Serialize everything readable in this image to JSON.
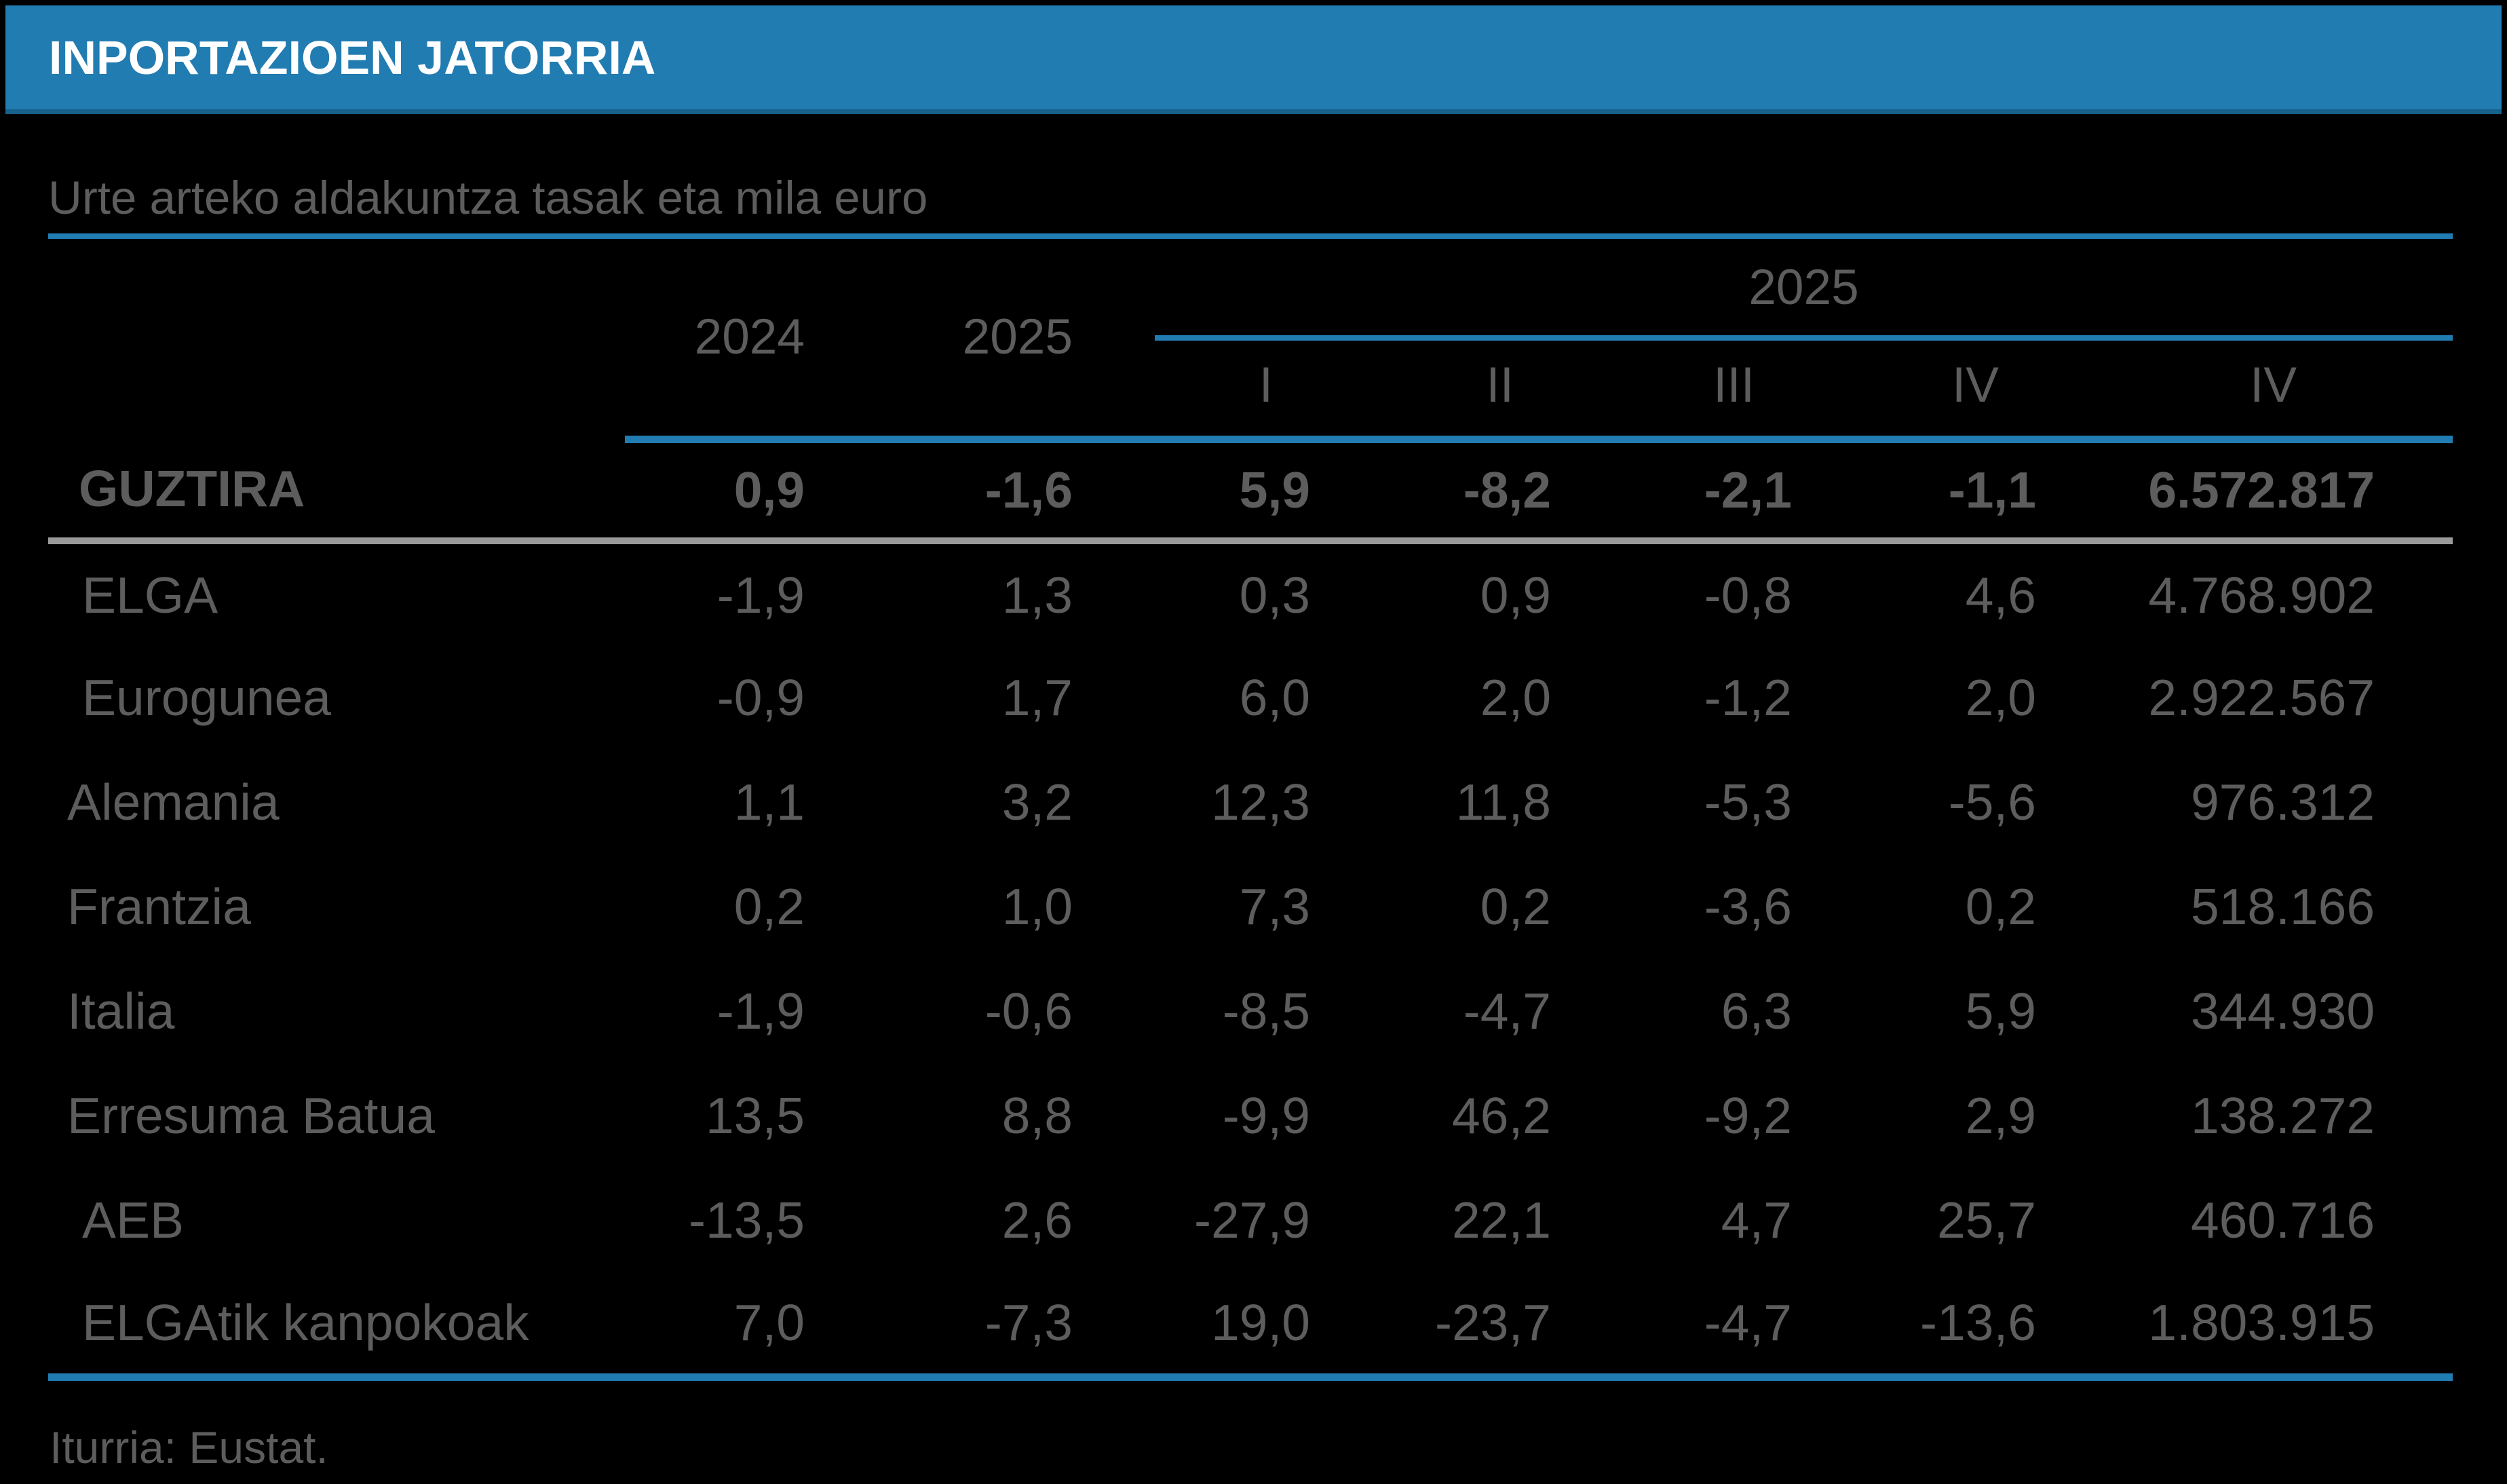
{
  "title_bar": {
    "title": "INPORTAZIOEN JATORRIA"
  },
  "subtitle": "Urte arteko aldakuntza tasak eta mila euro",
  "table": {
    "year_columns": [
      "2024",
      "2025"
    ],
    "quarter_group": {
      "label": "2025"
    },
    "quarter_columns": [
      "I",
      "II",
      "III",
      "IV",
      "IV"
    ],
    "rows": [
      {
        "label": "GUZTIRA",
        "indent": "total",
        "bold": true,
        "values": [
          "0,9",
          "-1,6",
          "5,9",
          "-8,2",
          "-2,1",
          "-1,1",
          "6.572.817"
        ]
      },
      {
        "label": "ELGA",
        "indent": "sub",
        "bold": false,
        "values": [
          "-1,9",
          "1,3",
          "0,3",
          "0,9",
          "-0,8",
          "4,6",
          "4.768.902"
        ]
      },
      {
        "label": "Eurogunea",
        "indent": "sub",
        "bold": false,
        "values": [
          "-0,9",
          "1,7",
          "6,0",
          "2,0",
          "-1,2",
          "2,0",
          "2.922.567"
        ]
      },
      {
        "label": "Alemania",
        "indent": "country",
        "bold": false,
        "values": [
          "1,1",
          "3,2",
          "12,3",
          "11,8",
          "-5,3",
          "-5,6",
          "976.312"
        ]
      },
      {
        "label": "Frantzia",
        "indent": "country",
        "bold": false,
        "values": [
          "0,2",
          "1,0",
          "7,3",
          "0,2",
          "-3,6",
          "0,2",
          "518.166"
        ]
      },
      {
        "label": "Italia",
        "indent": "country",
        "bold": false,
        "values": [
          "-1,9",
          "-0,6",
          "-8,5",
          "-4,7",
          "6,3",
          "5,9",
          "344.930"
        ]
      },
      {
        "label": "Erresuma Batua",
        "indent": "country",
        "bold": false,
        "values": [
          "13,5",
          "8,8",
          "-9,9",
          "46,2",
          "-9,2",
          "2,9",
          "138.272"
        ]
      },
      {
        "label": "AEB",
        "indent": "sub",
        "bold": false,
        "values": [
          "-13,5",
          "2,6",
          "-27,9",
          "22,1",
          "4,7",
          "25,7",
          "460.716"
        ]
      },
      {
        "label": "ELGAtik kanpokoak",
        "indent": "sub",
        "bold": false,
        "values": [
          "7,0",
          "-7,3",
          "19,0",
          "-23,7",
          "-4,7",
          "-13,6",
          "1.803.915"
        ]
      }
    ]
  },
  "footer": {
    "source": "Iturria: Eustat."
  },
  "colors": {
    "accent_blue": "#217CB1",
    "title_text": "#FFFFFF",
    "body_text": "#5D5D5D",
    "total_row_divider": "#9A9A9A",
    "background": "#000000"
  }
}
